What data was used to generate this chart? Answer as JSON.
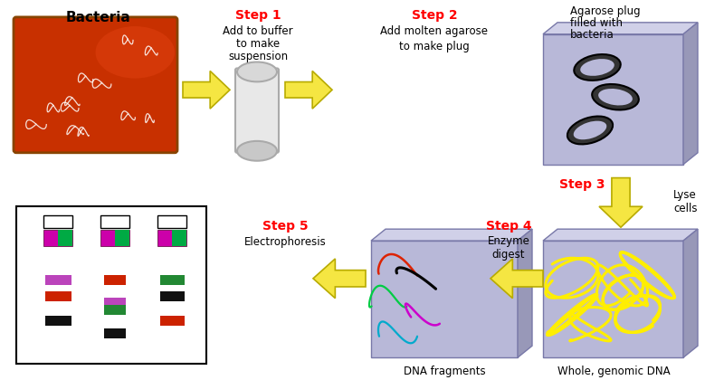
{
  "bg_color": "#ffffff",
  "step_color": "#ff0000",
  "arrow_yellow": "#f5e642",
  "arrow_edge": "#b8ab00",
  "box_face": "#b8b8d8",
  "box_top": "#d0d0e8",
  "box_right": "#9898b8",
  "box_edge": "#7878a8",
  "bacteria_label": "Bacteria",
  "agarose_label_line1": "Agarose plug",
  "agarose_label_line2": "filled with",
  "agarose_label_line3": "bacteria",
  "dna_frag_label": "DNA fragments",
  "genomic_label": "Whole, genomic DNA",
  "step1_label": "Step 1",
  "step1_text_line1": "Add to buffer",
  "step1_text_line2": "to make",
  "step1_text_line3": "suspension",
  "step2_label": "Step 2",
  "step2_text_line1": "Add molten agarose",
  "step2_text_line2": "to make plug",
  "step3_label": "Step 3",
  "step3_text": "Lyse\ncells",
  "step4_label": "Step 4",
  "step4_text": "Enzyme\ndigest",
  "step5_label": "Step 5",
  "step5_text": "Electrophoresis",
  "gel_bands": [
    {
      "lane": 0,
      "yf": 0.72,
      "color": "#bb44bb",
      "wf": 0.55
    },
    {
      "lane": 1,
      "yf": 0.72,
      "color": "#cc2200",
      "wf": 0.45
    },
    {
      "lane": 2,
      "yf": 0.72,
      "color": "#228833",
      "wf": 0.52
    },
    {
      "lane": 0,
      "yf": 0.57,
      "color": "#cc2200",
      "wf": 0.55
    },
    {
      "lane": 1,
      "yf": 0.51,
      "color": "#bb44bb",
      "wf": 0.45
    },
    {
      "lane": 1,
      "yf": 0.44,
      "color": "#228833",
      "wf": 0.45
    },
    {
      "lane": 2,
      "yf": 0.57,
      "color": "#111111",
      "wf": 0.52
    },
    {
      "lane": 0,
      "yf": 0.34,
      "color": "#111111",
      "wf": 0.55
    },
    {
      "lane": 2,
      "yf": 0.34,
      "color": "#cc2200",
      "wf": 0.52
    },
    {
      "lane": 1,
      "yf": 0.22,
      "color": "#111111",
      "wf": 0.45
    }
  ]
}
